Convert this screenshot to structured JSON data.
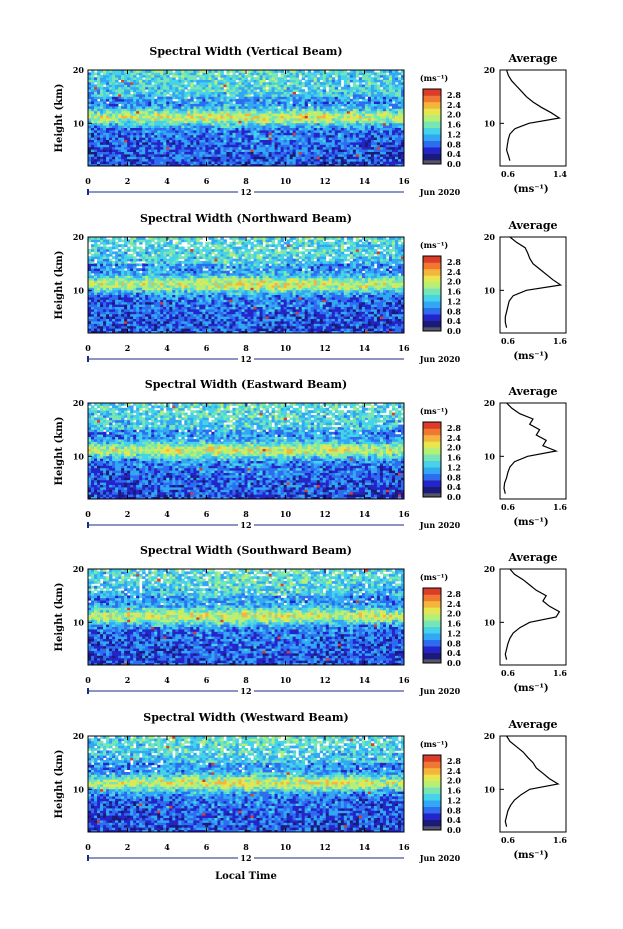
{
  "figure": {
    "x_axis_label": "Local Time",
    "y_axis_label": "Height (km)",
    "x_ticks": [
      "0",
      "2",
      "4",
      "6",
      "8",
      "10",
      "12",
      "14",
      "16"
    ],
    "y_ticks": [
      "20",
      "10"
    ],
    "date_marker": "12",
    "date_label": "Jun 2020",
    "colorbar_unit": "(ms⁻¹)",
    "colorbar_ticks": [
      "2.8",
      "2.4",
      "2.0",
      "1.6",
      "1.2",
      "0.8",
      "0.4",
      "0.0"
    ],
    "average_title": "Average",
    "average_xlabel": "(ms⁻¹)",
    "average_y_ticks": [
      "20",
      "10"
    ]
  },
  "colors": {
    "colormap": [
      "#1a1a7a",
      "#2424c8",
      "#2d6df0",
      "#32a8f5",
      "#46d2e8",
      "#78e6b4",
      "#b4f078",
      "#e6e650",
      "#f5b43c",
      "#f07832",
      "#dc3c28"
    ],
    "colorbar_bottom": "#555566",
    "line": "#000000",
    "date_marker": "#1a2a8a"
  },
  "chart_data": [
    {
      "type": "heatmap",
      "title": "Spectral Width (Vertical Beam)",
      "xlim": [
        0,
        16
      ],
      "ylim": [
        2,
        20
      ],
      "zlim": [
        0,
        3
      ],
      "note_height_km": [
        20,
        10
      ],
      "avg_xlim": [
        0.6,
        1.4
      ],
      "avg_xticks": [
        "0.6",
        "1.4"
      ],
      "average_profile": {
        "height_km": [
          3,
          4,
          5,
          6,
          7,
          8,
          9,
          10,
          11,
          12,
          13,
          14,
          15,
          16,
          17,
          18,
          19,
          20
        ],
        "value": [
          0.72,
          0.7,
          0.68,
          0.69,
          0.7,
          0.72,
          0.78,
          0.95,
          1.32,
          1.22,
          1.1,
          1.0,
          0.92,
          0.86,
          0.8,
          0.74,
          0.7,
          0.68
        ]
      }
    },
    {
      "type": "heatmap",
      "title": "Spectral Width (Northward Beam)",
      "xlim": [
        0,
        16
      ],
      "ylim": [
        2,
        20
      ],
      "zlim": [
        0,
        3
      ],
      "avg_xlim": [
        0.6,
        1.6
      ],
      "avg_xticks": [
        "0.6",
        "1.6"
      ],
      "average_profile": {
        "height_km": [
          3,
          4,
          5,
          6,
          7,
          8,
          9,
          10,
          11,
          12,
          13,
          14,
          15,
          16,
          17,
          18,
          19,
          20
        ],
        "value": [
          0.7,
          0.68,
          0.68,
          0.7,
          0.72,
          0.74,
          0.8,
          1.0,
          1.52,
          1.4,
          1.3,
          1.2,
          1.1,
          1.05,
          1.02,
          0.98,
          0.85,
          0.75
        ]
      }
    },
    {
      "type": "heatmap",
      "title": "Spectral Width (Eastward Beam)",
      "xlim": [
        0,
        16
      ],
      "ylim": [
        2,
        20
      ],
      "zlim": [
        0,
        3
      ],
      "avg_xlim": [
        0.6,
        1.6
      ],
      "avg_xticks": [
        "0.6",
        "1.6"
      ],
      "average_profile": {
        "height_km": [
          3,
          4,
          5,
          6,
          7,
          8,
          9,
          10,
          11,
          12,
          13,
          14,
          15,
          16,
          17,
          18,
          19,
          20
        ],
        "value": [
          0.68,
          0.66,
          0.67,
          0.7,
          0.72,
          0.75,
          0.82,
          1.02,
          1.45,
          1.25,
          1.3,
          1.15,
          1.2,
          1.05,
          1.1,
          0.9,
          0.78,
          0.7
        ]
      }
    },
    {
      "type": "heatmap",
      "title": "Spectral Width (Southward Beam)",
      "xlim": [
        0,
        16
      ],
      "ylim": [
        2,
        20
      ],
      "zlim": [
        0,
        3
      ],
      "avg_xlim": [
        0.6,
        1.6
      ],
      "avg_xticks": [
        "0.6",
        "1.6"
      ],
      "average_profile": {
        "height_km": [
          3,
          4,
          5,
          6,
          7,
          8,
          9,
          10,
          11,
          12,
          13,
          14,
          15,
          16,
          17,
          18,
          19,
          20
        ],
        "value": [
          0.7,
          0.68,
          0.7,
          0.72,
          0.75,
          0.8,
          0.9,
          1.05,
          1.45,
          1.5,
          1.35,
          1.25,
          1.3,
          1.15,
          1.05,
          0.95,
          0.82,
          0.75
        ]
      }
    },
    {
      "type": "heatmap",
      "title": "Spectral Width (Westward Beam)",
      "xlim": [
        0,
        16
      ],
      "ylim": [
        2,
        20
      ],
      "zlim": [
        0,
        3
      ],
      "avg_xlim": [
        0.6,
        1.6
      ],
      "avg_xticks": [
        "0.6",
        "1.6"
      ],
      "average_profile": {
        "height_km": [
          3,
          4,
          5,
          6,
          7,
          8,
          9,
          10,
          11,
          12,
          13,
          14,
          15,
          16,
          17,
          18,
          19,
          20
        ],
        "value": [
          0.7,
          0.68,
          0.7,
          0.72,
          0.76,
          0.82,
          0.92,
          1.05,
          1.48,
          1.35,
          1.25,
          1.15,
          1.1,
          1.02,
          0.95,
          0.85,
          0.75,
          0.7
        ]
      }
    }
  ]
}
